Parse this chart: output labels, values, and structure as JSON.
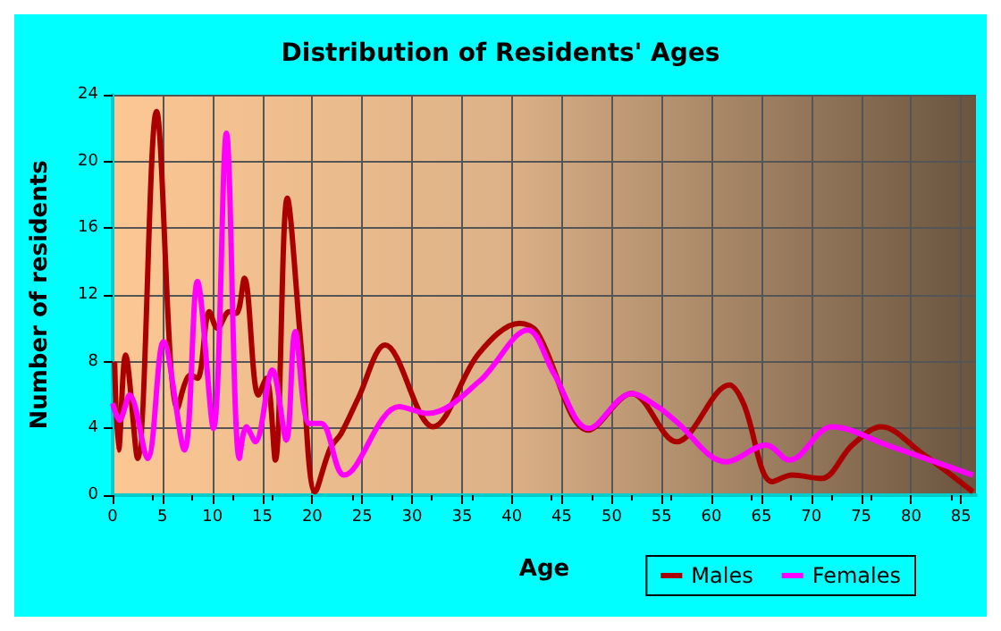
{
  "chart_data": {
    "type": "line",
    "title": "Distribution of Residents' Ages",
    "xlabel": "Age",
    "ylabel": "Number of residents",
    "xlim": [
      0,
      86.5
    ],
    "xticks": [
      0,
      5,
      10,
      15,
      20,
      25,
      30,
      35,
      40,
      45,
      50,
      55,
      60,
      65,
      70,
      75,
      80,
      85
    ],
    "ylim": [
      0,
      24
    ],
    "yticks": [
      0,
      4,
      8,
      12,
      16,
      20,
      24
    ],
    "grid": true,
    "legend": "bottom right",
    "marker": "none",
    "line_style": "solid",
    "series": [
      {
        "name": "Males",
        "color": "#aa0000",
        "x": [
          0.2,
          0.6,
          1.3,
          2.5,
          4.4,
          6.5,
          7.8,
          8.5,
          9.7,
          10.5,
          11.7,
          12.4,
          13.2,
          14.6,
          15.4,
          16.3,
          17.5,
          18.9,
          20.3,
          21.8,
          22.9,
          24.6,
          27.3,
          32.1,
          36.7,
          40.8,
          42.5,
          47.7,
          52,
          56.5,
          61.8,
          63.2,
          66.1,
          68.1,
          71,
          74.1,
          77,
          81.1,
          86.2
        ],
        "values": [
          8,
          2.7,
          8.4,
          2.2,
          23,
          5.2,
          7.2,
          7,
          11,
          10,
          11,
          10.9,
          13,
          6,
          7,
          2.1,
          17.8,
          8.8,
          0.2,
          2.8,
          3.7,
          5.8,
          9,
          4.1,
          8.5,
          10.3,
          9.8,
          3.9,
          6.1,
          3.2,
          6.6,
          5.5,
          0.8,
          1.2,
          1,
          3,
          4.1,
          2.5,
          0.2
        ]
      },
      {
        "name": "Females",
        "color": "#ff00ff",
        "x": [
          0,
          0.7,
          1.7,
          3.5,
          5.1,
          7.2,
          8.5,
          10.1,
          11.4,
          12.7,
          13.4,
          14.3,
          16,
          17.4,
          18.3,
          19.7,
          20.9,
          23.2,
          28.7,
          31.6,
          36.7,
          41.6,
          44.2,
          47.7,
          52,
          54.6,
          56.3,
          61.5,
          65.5,
          67.8,
          72.1,
          77.6,
          86.2
        ],
        "values": [
          5.5,
          4.5,
          6,
          2.2,
          9.2,
          2.7,
          12.8,
          4,
          21.7,
          2.2,
          4.1,
          3.2,
          7.5,
          3.3,
          9.8,
          4.3,
          4.3,
          1.2,
          5.3,
          4.9,
          6.8,
          9.9,
          7.3,
          4,
          6.1,
          5.3,
          4.5,
          2,
          3,
          2.1,
          4.1,
          3,
          1.2
        ]
      }
    ]
  }
}
